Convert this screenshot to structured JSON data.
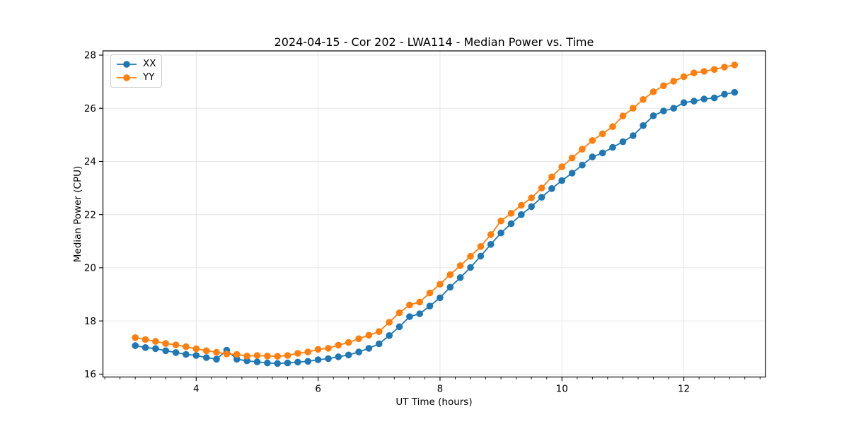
{
  "chart_data": {
    "type": "line",
    "title": "2024-04-15 - Cor 202 - LWA114 - Median Power vs. Time",
    "xlabel": "UT Time (hours)",
    "ylabel": "Median Power (CPU)",
    "xlim": [
      2.47,
      13.34
    ],
    "ylim": [
      15.89,
      28.16
    ],
    "xticks": [
      4,
      6,
      8,
      10,
      12
    ],
    "xtick_labels": [
      "4",
      "6",
      "8",
      "10",
      "12"
    ],
    "x_minor_tick_step": 0.25,
    "yticks": [
      16,
      18,
      20,
      22,
      24,
      26,
      28
    ],
    "ytick_labels": [
      "16",
      "18",
      "20",
      "22",
      "24",
      "26",
      "28"
    ],
    "grid": true,
    "grid_color": "#e6e6e6",
    "axis_color": "#000000",
    "legend_position": "upper-left",
    "x": [
      3.0,
      3.167,
      3.333,
      3.5,
      3.667,
      3.833,
      4.0,
      4.167,
      4.333,
      4.5,
      4.667,
      4.833,
      5.0,
      5.167,
      5.333,
      5.5,
      5.667,
      5.833,
      6.0,
      6.167,
      6.333,
      6.5,
      6.667,
      6.833,
      7.0,
      7.167,
      7.333,
      7.5,
      7.667,
      7.833,
      8.0,
      8.167,
      8.333,
      8.5,
      8.667,
      8.833,
      9.0,
      9.167,
      9.333,
      9.5,
      9.667,
      9.833,
      10.0,
      10.167,
      10.333,
      10.5,
      10.667,
      10.833,
      11.0,
      11.167,
      11.333,
      11.5,
      11.667,
      11.833,
      12.0,
      12.167,
      12.333,
      12.5,
      12.667,
      12.833
    ],
    "series": [
      {
        "name": "XX",
        "color": "#1f77b4",
        "values": [
          17.07,
          17.0,
          16.96,
          16.88,
          16.81,
          16.74,
          16.7,
          16.62,
          16.56,
          16.9,
          16.56,
          16.5,
          16.46,
          16.42,
          16.4,
          16.42,
          16.45,
          16.48,
          16.54,
          16.58,
          16.65,
          16.72,
          16.83,
          16.97,
          17.14,
          17.45,
          17.78,
          18.16,
          18.27,
          18.56,
          18.87,
          19.27,
          19.63,
          20.01,
          20.44,
          20.88,
          21.31,
          21.66,
          22.0,
          22.3,
          22.65,
          22.98,
          23.28,
          23.56,
          23.86,
          24.17,
          24.32,
          24.53,
          24.74,
          24.97,
          25.35,
          25.72,
          25.9,
          26.0,
          26.21,
          26.27,
          26.35,
          26.39,
          26.53,
          26.6
        ]
      },
      {
        "name": "YY",
        "color": "#ff7f0e",
        "values": [
          17.37,
          17.3,
          17.23,
          17.15,
          17.1,
          17.03,
          16.95,
          16.88,
          16.82,
          16.76,
          16.74,
          16.68,
          16.7,
          16.68,
          16.67,
          16.7,
          16.78,
          16.83,
          16.93,
          16.97,
          17.09,
          17.19,
          17.33,
          17.46,
          17.6,
          17.95,
          18.31,
          18.6,
          18.71,
          19.05,
          19.38,
          19.74,
          20.08,
          20.43,
          20.8,
          21.25,
          21.76,
          22.05,
          22.35,
          22.63,
          23.0,
          23.42,
          23.8,
          24.13,
          24.46,
          24.79,
          25.04,
          25.31,
          25.71,
          26.0,
          26.33,
          26.62,
          26.85,
          27.02,
          27.19,
          27.33,
          27.39,
          27.46,
          27.55,
          27.63
        ]
      }
    ]
  }
}
